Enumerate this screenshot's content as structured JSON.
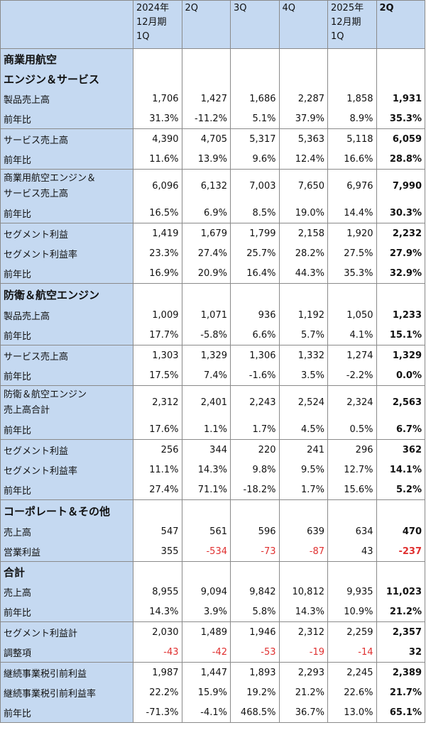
{
  "header": {
    "label_cell": "",
    "columns": [
      {
        "lines": [
          "2024年",
          "12月期",
          "1Q"
        ],
        "bold": false
      },
      {
        "lines": [
          "2Q"
        ],
        "bold": false
      },
      {
        "lines": [
          "3Q"
        ],
        "bold": false
      },
      {
        "lines": [
          "4Q"
        ],
        "bold": false
      },
      {
        "lines": [
          "2025年",
          "12月期",
          "1Q"
        ],
        "bold": false
      },
      {
        "lines": [
          "2Q"
        ],
        "bold": true
      }
    ]
  },
  "rows": [
    {
      "type": "section",
      "label": "商業用航空",
      "h": 29,
      "sep": true
    },
    {
      "type": "section",
      "label": "エンジン＆サービス",
      "h": 28
    },
    {
      "label": "製品売上高",
      "values": [
        "1,706",
        "1,427",
        "1,686",
        "2,287",
        "1,858",
        "1,931"
      ],
      "h": 28
    },
    {
      "label": "前年比",
      "values": [
        "31.3%",
        "-11.2%",
        "5.1%",
        "37.9%",
        "8.9%",
        "35.3%"
      ],
      "h": 28
    },
    {
      "label": "サービス売上高",
      "values": [
        "4,390",
        "4,705",
        "5,317",
        "5,363",
        "5,118",
        "6,059"
      ],
      "h": 29,
      "sep": true
    },
    {
      "label": "前年比",
      "values": [
        "11.6%",
        "13.9%",
        "9.6%",
        "12.4%",
        "16.6%",
        "28.8%"
      ],
      "h": 28
    },
    {
      "label": "商業用航空エンジン＆\nサービス売上高",
      "values": [
        "6,096",
        "6,132",
        "7,003",
        "7,650",
        "6,976",
        "7,990"
      ],
      "h": 48,
      "sep": true,
      "two": true
    },
    {
      "label": "前年比",
      "values": [
        "16.5%",
        "6.9%",
        "8.5%",
        "19.0%",
        "14.4%",
        "30.3%"
      ],
      "h": 28
    },
    {
      "label": "セグメント利益",
      "values": [
        "1,419",
        "1,679",
        "1,799",
        "2,158",
        "1,920",
        "2,232"
      ],
      "h": 29,
      "sep": true
    },
    {
      "label": "セグメント利益率",
      "values": [
        "23.3%",
        "27.4%",
        "25.7%",
        "28.2%",
        "27.5%",
        "27.9%"
      ],
      "h": 28
    },
    {
      "label": "前年比",
      "values": [
        "16.9%",
        "20.9%",
        "16.4%",
        "44.3%",
        "35.3%",
        "32.9%"
      ],
      "h": 28
    },
    {
      "type": "section",
      "label": "防衛＆航空エンジン",
      "h": 31,
      "sep": true
    },
    {
      "label": "製品売上高",
      "values": [
        "1,009",
        "1,071",
        "936",
        "1,192",
        "1,050",
        "1,233"
      ],
      "h": 28
    },
    {
      "label": "前年比",
      "values": [
        "17.7%",
        "-5.8%",
        "6.6%",
        "5.7%",
        "4.1%",
        "15.1%"
      ],
      "h": 28
    },
    {
      "label": "サービス売上高",
      "values": [
        "1,303",
        "1,329",
        "1,306",
        "1,332",
        "1,274",
        "1,329"
      ],
      "h": 29,
      "sep": true
    },
    {
      "label": "前年比",
      "values": [
        "17.5%",
        "7.4%",
        "-1.6%",
        "3.5%",
        "-2.2%",
        "0.0%"
      ],
      "h": 28
    },
    {
      "label": "防衛＆航空エンジン\n売上高合計",
      "values": [
        "2,312",
        "2,401",
        "2,243",
        "2,524",
        "2,324",
        "2,563"
      ],
      "h": 48,
      "sep": true,
      "two": true
    },
    {
      "label": "前年比",
      "values": [
        "17.6%",
        "1.1%",
        "1.7%",
        "4.5%",
        "0.5%",
        "6.7%"
      ],
      "h": 28
    },
    {
      "label": "セグメント利益",
      "values": [
        "256",
        "344",
        "220",
        "241",
        "296",
        "362"
      ],
      "h": 29,
      "sep": true
    },
    {
      "label": "セグメント利益率",
      "values": [
        "11.1%",
        "14.3%",
        "9.8%",
        "9.5%",
        "12.7%",
        "14.1%"
      ],
      "h": 28
    },
    {
      "label": "前年比",
      "values": [
        "27.4%",
        "71.1%",
        "-18.2%",
        "1.7%",
        "15.6%",
        "5.2%"
      ],
      "h": 28
    },
    {
      "type": "section",
      "label": "コーポレート＆その他",
      "h": 31,
      "sep": true
    },
    {
      "label": "売上高",
      "values": [
        "547",
        "561",
        "596",
        "639",
        "634",
        "470"
      ],
      "h": 28
    },
    {
      "label": "営業利益",
      "values": [
        "355",
        "-534",
        "-73",
        "-87",
        "43",
        "-237"
      ],
      "neg": [
        false,
        true,
        true,
        true,
        false,
        true
      ],
      "h": 28
    },
    {
      "type": "section",
      "label": "合計",
      "h": 29,
      "sep": true
    },
    {
      "label": "売上高",
      "values": [
        "8,955",
        "9,094",
        "9,842",
        "10,812",
        "9,935",
        "11,023"
      ],
      "h": 28
    },
    {
      "label": "前年比",
      "values": [
        "14.3%",
        "3.9%",
        "5.8%",
        "14.3%",
        "10.9%",
        "21.2%"
      ],
      "h": 28
    },
    {
      "label": "セグメント利益計",
      "values": [
        "2,030",
        "1,489",
        "1,946",
        "2,312",
        "2,259",
        "2,357"
      ],
      "h": 29,
      "sep": true
    },
    {
      "label": "調整項",
      "values": [
        "-43",
        "-42",
        "-53",
        "-19",
        "-14",
        "32"
      ],
      "neg": [
        true,
        true,
        true,
        true,
        true,
        false
      ],
      "h": 28
    },
    {
      "label": "継続事業税引前利益",
      "values": [
        "1,987",
        "1,447",
        "1,893",
        "2,293",
        "2,245",
        "2,389"
      ],
      "h": 29,
      "sep": true
    },
    {
      "label": "継続事業税引前利益率",
      "values": [
        "22.2%",
        "15.9%",
        "19.2%",
        "21.2%",
        "22.6%",
        "21.7%"
      ],
      "h": 28
    },
    {
      "label": "前年比",
      "values": [
        "-71.3%",
        "-4.1%",
        "468.5%",
        "36.7%",
        "13.0%",
        "65.1%"
      ],
      "h": 28,
      "end": true
    }
  ]
}
